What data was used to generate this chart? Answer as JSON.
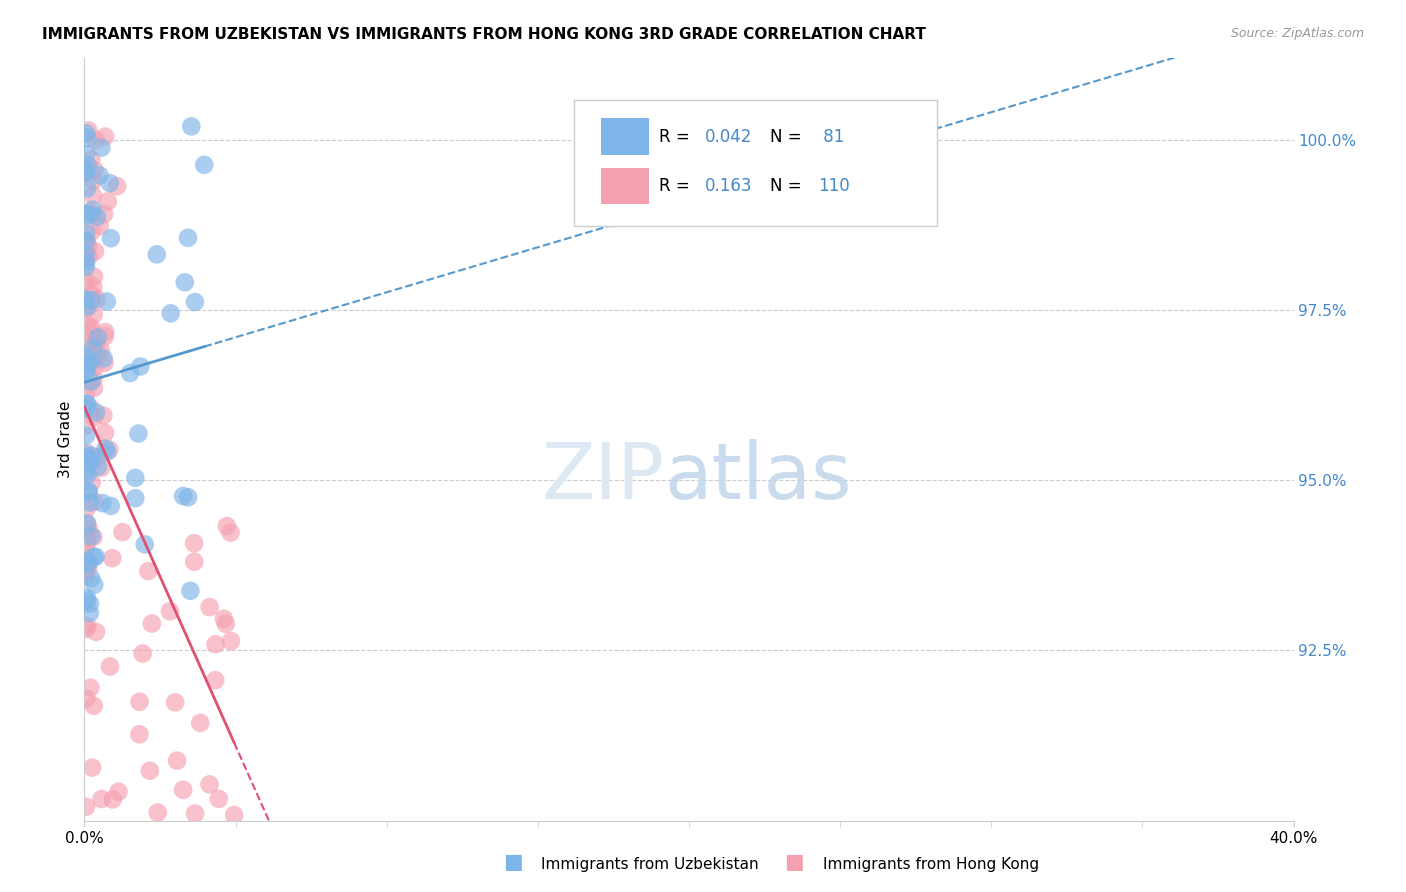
{
  "title": "IMMIGRANTS FROM UZBEKISTAN VS IMMIGRANTS FROM HONG KONG 3RD GRADE CORRELATION CHART",
  "source": "Source: ZipAtlas.com",
  "ylabel": "3rd Grade",
  "ytick_labels": [
    "92.5%",
    "95.0%",
    "97.5%",
    "100.0%"
  ],
  "ytick_values": [
    92.5,
    95.0,
    97.5,
    100.0
  ],
  "xlim": [
    0.0,
    40.0
  ],
  "ylim": [
    90.0,
    101.2
  ],
  "legend_label_blue": "Immigrants from Uzbekistan",
  "legend_label_pink": "Immigrants from Hong Kong",
  "R_blue": 0.042,
  "N_blue": 81,
  "R_pink": 0.163,
  "N_pink": 110,
  "blue_color": "#7EB5E8",
  "pink_color": "#F5A0B0",
  "line_blue": "#5599CC",
  "line_pink": "#E05070"
}
